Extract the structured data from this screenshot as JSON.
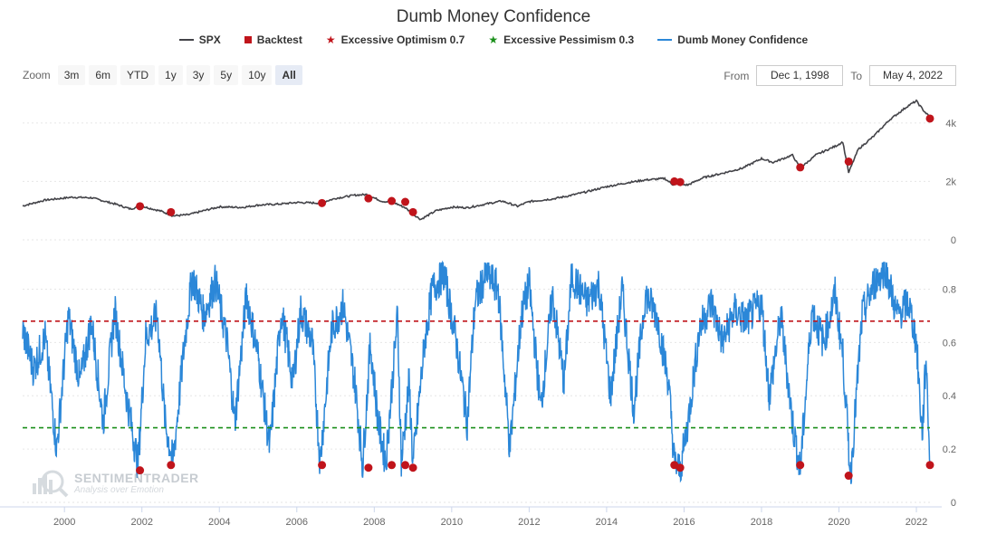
{
  "title": "Dumb Money Confidence",
  "legend": [
    {
      "label": "SPX",
      "color": "#434348",
      "symbol": "line"
    },
    {
      "label": "Backtest",
      "color": "#c0141b",
      "symbol": "square"
    },
    {
      "label": "Excessive Optimism 0.7",
      "color": "#c0141b",
      "symbol": "star"
    },
    {
      "label": "Excessive Pessimism 0.3",
      "color": "#1a8f1a",
      "symbol": "star"
    },
    {
      "label": "Dumb Money Confidence",
      "color": "#2b87d8",
      "symbol": "line"
    }
  ],
  "zoom": {
    "label": "Zoom",
    "buttons": [
      "3m",
      "6m",
      "YTD",
      "1y",
      "3y",
      "5y",
      "10y",
      "All"
    ],
    "active": "All"
  },
  "range": {
    "from_label": "From",
    "from_value": "Dec 1, 1998",
    "to_label": "To",
    "to_value": "May 4, 2022"
  },
  "watermark": {
    "brand": "SENTIMENTRADER",
    "tagline": "Analysis over Emotion"
  },
  "chart_data": {
    "type": "line",
    "x_ticks": [
      "2000",
      "2002",
      "2004",
      "2006",
      "2008",
      "2010",
      "2012",
      "2014",
      "2016",
      "2018",
      "2020",
      "2022"
    ],
    "x_range": [
      1998.92,
      2022.35
    ],
    "spx_axis": {
      "ticks": [
        "4k",
        "2k",
        "0"
      ],
      "tick_values": [
        4000,
        2000,
        0
      ],
      "range": [
        0,
        4800
      ]
    },
    "dmc_axis": {
      "ticks": [
        "0.8",
        "0.6",
        "0.4",
        "0.2",
        "0"
      ],
      "tick_values": [
        0.8,
        0.6,
        0.4,
        0.2,
        0
      ],
      "range": [
        0,
        0.9
      ]
    },
    "spx_series": {
      "name": "SPX",
      "color": "#434348",
      "points": [
        [
          1998.92,
          1160
        ],
        [
          1999.5,
          1360
        ],
        [
          2000.2,
          1460
        ],
        [
          2000.7,
          1440
        ],
        [
          2001.3,
          1230
        ],
        [
          2001.7,
          1060
        ],
        [
          2002.0,
          1150
        ],
        [
          2002.5,
          980
        ],
        [
          2002.8,
          820
        ],
        [
          2003.2,
          860
        ],
        [
          2003.6,
          1000
        ],
        [
          2004.0,
          1130
        ],
        [
          2004.6,
          1110
        ],
        [
          2005.0,
          1190
        ],
        [
          2005.6,
          1230
        ],
        [
          2006.0,
          1280
        ],
        [
          2006.6,
          1260
        ],
        [
          2007.0,
          1420
        ],
        [
          2007.5,
          1530
        ],
        [
          2007.8,
          1550
        ],
        [
          2008.2,
          1320
        ],
        [
          2008.5,
          1280
        ],
        [
          2008.8,
          1100
        ],
        [
          2009.0,
          880
        ],
        [
          2009.2,
          700
        ],
        [
          2009.6,
          1000
        ],
        [
          2010.0,
          1120
        ],
        [
          2010.4,
          1100
        ],
        [
          2010.9,
          1230
        ],
        [
          2011.3,
          1330
        ],
        [
          2011.7,
          1150
        ],
        [
          2012.0,
          1310
        ],
        [
          2012.6,
          1400
        ],
        [
          2013.0,
          1500
        ],
        [
          2013.5,
          1650
        ],
        [
          2014.0,
          1820
        ],
        [
          2014.6,
          1970
        ],
        [
          2015.0,
          2050
        ],
        [
          2015.5,
          2100
        ],
        [
          2015.7,
          1900
        ],
        [
          2016.1,
          1880
        ],
        [
          2016.5,
          2130
        ],
        [
          2017.0,
          2280
        ],
        [
          2017.5,
          2450
        ],
        [
          2018.0,
          2780
        ],
        [
          2018.3,
          2650
        ],
        [
          2018.8,
          2900
        ],
        [
          2019.0,
          2450
        ],
        [
          2019.4,
          2900
        ],
        [
          2019.9,
          3200
        ],
        [
          2020.1,
          3350
        ],
        [
          2020.25,
          2300
        ],
        [
          2020.5,
          3100
        ],
        [
          2020.9,
          3550
        ],
        [
          2021.3,
          4100
        ],
        [
          2021.8,
          4600
        ],
        [
          2022.0,
          4750
        ],
        [
          2022.2,
          4400
        ],
        [
          2022.35,
          4200
        ]
      ]
    },
    "dmc_series": {
      "name": "Dumb Money Confidence",
      "color": "#2b87d8",
      "points": [
        [
          1998.92,
          0.65
        ],
        [
          1999.2,
          0.5
        ],
        [
          1999.5,
          0.62
        ],
        [
          1999.8,
          0.2
        ],
        [
          2000.1,
          0.7
        ],
        [
          2000.4,
          0.45
        ],
        [
          2000.7,
          0.68
        ],
        [
          2001.0,
          0.3
        ],
        [
          2001.3,
          0.72
        ],
        [
          2001.6,
          0.4
        ],
        [
          2001.9,
          0.14
        ],
        [
          2002.1,
          0.62
        ],
        [
          2002.4,
          0.7
        ],
        [
          2002.6,
          0.3
        ],
        [
          2002.8,
          0.15
        ],
        [
          2003.1,
          0.6
        ],
        [
          2003.3,
          0.85
        ],
        [
          2003.6,
          0.7
        ],
        [
          2003.9,
          0.83
        ],
        [
          2004.2,
          0.6
        ],
        [
          2004.4,
          0.3
        ],
        [
          2004.7,
          0.78
        ],
        [
          2005.0,
          0.55
        ],
        [
          2005.3,
          0.2
        ],
        [
          2005.6,
          0.72
        ],
        [
          2005.9,
          0.45
        ],
        [
          2006.1,
          0.72
        ],
        [
          2006.4,
          0.6
        ],
        [
          2006.6,
          0.15
        ],
        [
          2006.9,
          0.65
        ],
        [
          2007.2,
          0.74
        ],
        [
          2007.5,
          0.45
        ],
        [
          2007.7,
          0.14
        ],
        [
          2007.9,
          0.6
        ],
        [
          2008.1,
          0.3
        ],
        [
          2008.3,
          0.15
        ],
        [
          2008.6,
          0.7
        ],
        [
          2008.7,
          0.15
        ],
        [
          2008.9,
          0.45
        ],
        [
          2009.0,
          0.14
        ],
        [
          2009.3,
          0.6
        ],
        [
          2009.5,
          0.8
        ],
        [
          2009.8,
          0.86
        ],
        [
          2010.1,
          0.62
        ],
        [
          2010.4,
          0.3
        ],
        [
          2010.6,
          0.75
        ],
        [
          2010.9,
          0.86
        ],
        [
          2011.2,
          0.8
        ],
        [
          2011.5,
          0.2
        ],
        [
          2011.8,
          0.7
        ],
        [
          2012.0,
          0.82
        ],
        [
          2012.3,
          0.35
        ],
        [
          2012.6,
          0.78
        ],
        [
          2012.9,
          0.45
        ],
        [
          2013.1,
          0.85
        ],
        [
          2013.5,
          0.75
        ],
        [
          2013.8,
          0.82
        ],
        [
          2014.1,
          0.4
        ],
        [
          2014.4,
          0.8
        ],
        [
          2014.7,
          0.35
        ],
        [
          2015.0,
          0.78
        ],
        [
          2015.3,
          0.7
        ],
        [
          2015.6,
          0.45
        ],
        [
          2015.75,
          0.15
        ],
        [
          2015.9,
          0.12
        ],
        [
          2016.1,
          0.3
        ],
        [
          2016.4,
          0.65
        ],
        [
          2016.7,
          0.75
        ],
        [
          2017.0,
          0.6
        ],
        [
          2017.3,
          0.72
        ],
        [
          2017.6,
          0.68
        ],
        [
          2018.0,
          0.75
        ],
        [
          2018.2,
          0.4
        ],
        [
          2018.5,
          0.7
        ],
        [
          2018.8,
          0.3
        ],
        [
          2019.0,
          0.12
        ],
        [
          2019.3,
          0.72
        ],
        [
          2019.6,
          0.6
        ],
        [
          2019.9,
          0.78
        ],
        [
          2020.1,
          0.55
        ],
        [
          2020.3,
          0.1
        ],
        [
          2020.6,
          0.7
        ],
        [
          2020.9,
          0.82
        ],
        [
          2021.2,
          0.88
        ],
        [
          2021.5,
          0.7
        ],
        [
          2021.8,
          0.75
        ],
        [
          2022.0,
          0.6
        ],
        [
          2022.15,
          0.25
        ],
        [
          2022.25,
          0.55
        ],
        [
          2022.35,
          0.15
        ]
      ]
    },
    "backtest_spx": [
      [
        2001.95,
        1150
      ],
      [
        2002.75,
        950
      ],
      [
        2006.65,
        1260
      ],
      [
        2007.85,
        1420
      ],
      [
        2008.45,
        1330
      ],
      [
        2008.8,
        1300
      ],
      [
        2009.0,
        950
      ],
      [
        2015.75,
        2000
      ],
      [
        2015.9,
        1980
      ],
      [
        2019.0,
        2480
      ],
      [
        2020.25,
        2680
      ],
      [
        2022.35,
        4150
      ]
    ],
    "backtest_dmc": [
      [
        2001.95,
        0.12
      ],
      [
        2002.75,
        0.14
      ],
      [
        2006.65,
        0.14
      ],
      [
        2007.85,
        0.13
      ],
      [
        2008.45,
        0.14
      ],
      [
        2008.8,
        0.14
      ],
      [
        2009.0,
        0.13
      ],
      [
        2015.75,
        0.14
      ],
      [
        2015.9,
        0.13
      ],
      [
        2019.0,
        0.14
      ],
      [
        2020.25,
        0.1
      ],
      [
        2022.35,
        0.14
      ]
    ],
    "thresholds": [
      {
        "name": "Excessive Optimism 0.7",
        "value": 0.68,
        "color": "#c0141b"
      },
      {
        "name": "Excessive Pessimism 0.3",
        "value": 0.28,
        "color": "#1a8f1a"
      }
    ],
    "backtest_color": "#c0141b"
  }
}
